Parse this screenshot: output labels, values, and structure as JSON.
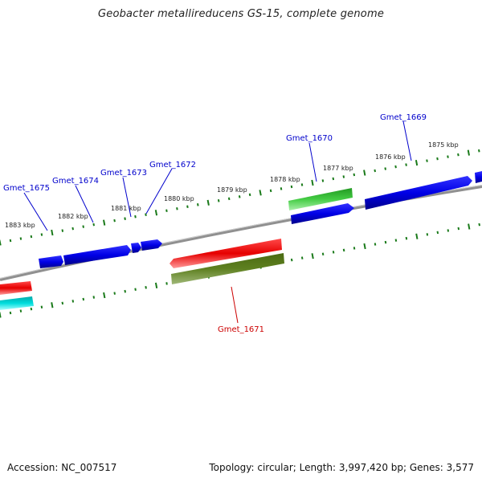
{
  "title": "Geobacter metallireducens GS-15, complete genome",
  "footer": {
    "accession": "Accession: NC_007517",
    "stats": "Topology: circular; Length: 3,997,420 bp; Genes: 3,577"
  },
  "colors": {
    "backbone": "#888888",
    "forward_genes": "#0000e6",
    "reverse_genes": "#e60000",
    "rna_green": "#33bb33",
    "olive": "#5a7a1a",
    "cyan": "#00cccc",
    "tick": "#1a7a1a",
    "label_forward": "#0000cc",
    "label_reverse": "#cc0000"
  },
  "kbp_labels": [
    "1875 kbp",
    "1876 kbp",
    "1877 kbp",
    "1878 kbp",
    "1879 kbp",
    "1880 kbp",
    "1881 kbp",
    "1882 kbp",
    "1883 kbp"
  ],
  "gene_labels": [
    "Gmet_1669",
    "Gmet_1670",
    "Gmet_1672",
    "Gmet_1673",
    "Gmet_1674",
    "Gmet_1675",
    "Gmet_1671"
  ]
}
